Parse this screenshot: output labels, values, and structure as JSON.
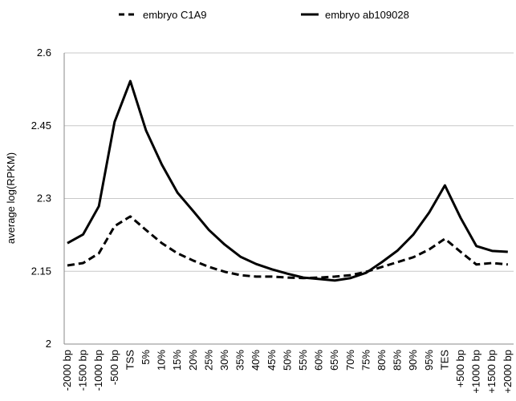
{
  "chart_data": {
    "type": "line",
    "ylabel": "average log(RPKM)",
    "categories": [
      "-2000 bp",
      "-1500 bp",
      "-1000 bp",
      "-500 bp",
      "TSS",
      "5%",
      "10%",
      "15%",
      "20%",
      "25%",
      "30%",
      "35%",
      "40%",
      "45%",
      "50%",
      "55%",
      "60%",
      "65%",
      "70%",
      "75%",
      "80%",
      "85%",
      "90%",
      "95%",
      "TES",
      "+500 bp",
      "+1000 bp",
      "+1500 bp",
      "+2000 bp"
    ],
    "series": [
      {
        "name": "embryo C1A9",
        "color": "#000000",
        "dash": true,
        "values": [
          2.162,
          2.167,
          2.187,
          2.243,
          2.263,
          2.235,
          2.208,
          2.187,
          2.172,
          2.159,
          2.149,
          2.142,
          2.139,
          2.139,
          2.137,
          2.136,
          2.137,
          2.139,
          2.142,
          2.149,
          2.159,
          2.169,
          2.179,
          2.195,
          2.217,
          2.19,
          2.164,
          2.167,
          2.164
        ]
      },
      {
        "name": "embryo ab109028",
        "color": "#000000",
        "dash": false,
        "values": [
          2.208,
          2.226,
          2.284,
          2.458,
          2.542,
          2.44,
          2.37,
          2.312,
          2.274,
          2.235,
          2.205,
          2.18,
          2.165,
          2.154,
          2.145,
          2.137,
          2.134,
          2.131,
          2.136,
          2.147,
          2.169,
          2.193,
          2.226,
          2.271,
          2.327,
          2.26,
          2.202,
          2.192,
          2.19
        ]
      }
    ],
    "ylim": [
      2,
      2.6
    ],
    "yticks": [
      2,
      2.15,
      2.3,
      2.45,
      2.6
    ],
    "grid": true,
    "legend": "top"
  }
}
